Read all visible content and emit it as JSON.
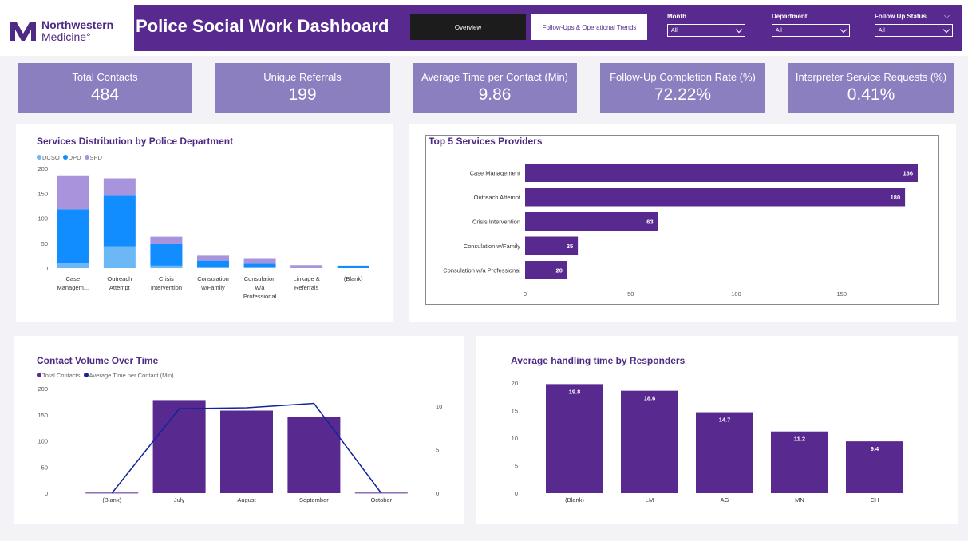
{
  "header": {
    "logo": {
      "line1": "Northwestern",
      "line2": "Medicine°"
    },
    "title": "Police Social Work Dashboard",
    "nav": {
      "overview": "Overview",
      "trends": "Follow-Ups & Operational Trends"
    },
    "filters": [
      {
        "label": "Month",
        "value": "All"
      },
      {
        "label": "Department",
        "value": "All"
      },
      {
        "label": "Follow Up Status",
        "value": "All"
      }
    ]
  },
  "kpis": [
    {
      "label": "Total Contacts",
      "value": "484"
    },
    {
      "label": "Unique Referrals",
      "value": "199"
    },
    {
      "label": "Average Time per Contact (Min)",
      "value": "9.86"
    },
    {
      "label": "Follow-Up Completion Rate (%)",
      "value": "72.22%"
    },
    {
      "label": "Interpreter Service Requests (%)",
      "value": "0.41%"
    }
  ],
  "colors": {
    "brand": "#58298f",
    "kpi": "#8b7fc0",
    "dcso": "#6cb8f6",
    "dpd": "#118dff",
    "spd": "#a794dc",
    "line": "#12239e"
  },
  "chart_data": [
    {
      "type": "bar",
      "stacked": true,
      "title": "Services Distribution by Police Department",
      "categories": [
        "Case Managem...",
        "Outreach Attempt",
        "Crisis Intervention",
        "Consulation w/Family",
        "Consulation w/a Professional",
        "Linkage & Referrals",
        "(Blank)"
      ],
      "series": [
        {
          "name": "DCSO",
          "values": [
            10,
            44,
            5,
            3,
            3,
            0,
            0
          ]
        },
        {
          "name": "DPD",
          "values": [
            108,
            101,
            43,
            12,
            6,
            0,
            5
          ]
        },
        {
          "name": "SPD",
          "values": [
            68,
            35,
            15,
            10,
            11,
            6,
            0
          ]
        }
      ],
      "ylim": [
        0,
        200
      ],
      "yticks": [
        0,
        50,
        100,
        150,
        200
      ],
      "legend": "top-left"
    },
    {
      "type": "bar",
      "orientation": "horizontal",
      "title": "Top 5 Services Providers",
      "categories": [
        "Case Management",
        "Outreach Attempt",
        "Crisis Intervention",
        "Consulation w/Family",
        "Consulation w/a Professional"
      ],
      "values": [
        186,
        180,
        63,
        25,
        20
      ],
      "xticks": [
        0,
        50,
        100,
        150
      ],
      "xlim": [
        0,
        186
      ]
    },
    {
      "type": "bar",
      "title": "Contact Volume Over Time",
      "categories": [
        "(Blank)",
        "July",
        "August",
        "September",
        "October"
      ],
      "series": [
        {
          "name": "Total Contacts",
          "values": [
            1,
            178,
            158,
            146,
            1
          ]
        },
        {
          "name": "Average Time per Contact (Min)",
          "type": "line",
          "axis": "right",
          "values": [
            0,
            9.7,
            9.8,
            10.3,
            0
          ]
        }
      ],
      "ylim": [
        0,
        200
      ],
      "yticks": [
        0,
        50,
        100,
        150,
        200
      ],
      "y2lim": [
        0,
        12
      ],
      "y2ticks": [
        0,
        5,
        10
      ],
      "legend": "top-left"
    },
    {
      "type": "bar",
      "title": "Average handling time by Responders",
      "categories": [
        "(Blank)",
        "LM",
        "AG",
        "MN",
        "CH"
      ],
      "values": [
        19.8,
        18.6,
        14.7,
        11.2,
        9.4
      ],
      "ylim": [
        0,
        20
      ],
      "yticks": [
        0,
        5,
        10,
        15,
        20
      ]
    }
  ]
}
